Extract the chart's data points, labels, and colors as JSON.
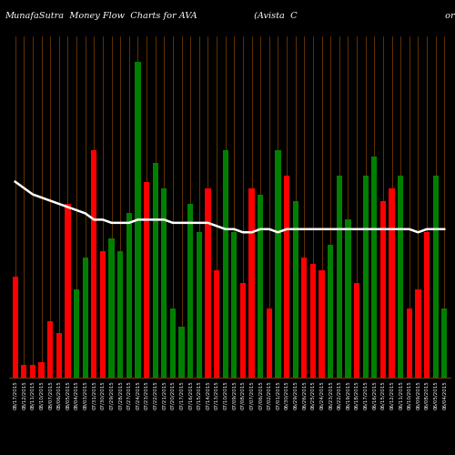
{
  "title": "MunafaSutra  Money Flow  Charts for AVA                    (Avista  C                                                    orporatio",
  "background_color": "#000000",
  "grid_color": "#8B4500",
  "bar_colors_pattern": [
    "red",
    "red",
    "red",
    "red",
    "red",
    "red",
    "red",
    "green",
    "green",
    "red",
    "red",
    "green",
    "green",
    "green",
    "green",
    "red",
    "green",
    "green",
    "green",
    "green",
    "green",
    "green",
    "red",
    "red",
    "green",
    "green",
    "red",
    "red",
    "green",
    "red",
    "green",
    "red",
    "green",
    "red",
    "red",
    "red",
    "green",
    "green",
    "green",
    "red",
    "green",
    "green",
    "red",
    "red",
    "green",
    "red",
    "red",
    "red",
    "green",
    "green"
  ],
  "bar_heights": [
    0.32,
    0.04,
    0.04,
    0.05,
    0.18,
    0.14,
    0.55,
    0.28,
    0.38,
    0.72,
    0.4,
    0.44,
    0.4,
    0.52,
    1.0,
    0.62,
    0.68,
    0.6,
    0.22,
    0.16,
    0.55,
    0.46,
    0.6,
    0.34,
    0.72,
    0.46,
    0.3,
    0.6,
    0.58,
    0.22,
    0.72,
    0.64,
    0.56,
    0.38,
    0.36,
    0.34,
    0.42,
    0.64,
    0.5,
    0.3,
    0.64,
    0.7,
    0.56,
    0.6,
    0.64,
    0.22,
    0.28,
    0.46,
    0.64,
    0.22
  ],
  "price_line_y": [
    0.62,
    0.6,
    0.58,
    0.57,
    0.56,
    0.55,
    0.54,
    0.53,
    0.52,
    0.5,
    0.5,
    0.49,
    0.49,
    0.49,
    0.5,
    0.5,
    0.5,
    0.5,
    0.49,
    0.49,
    0.49,
    0.49,
    0.49,
    0.48,
    0.47,
    0.47,
    0.46,
    0.46,
    0.47,
    0.47,
    0.46,
    0.47,
    0.47,
    0.47,
    0.47,
    0.47,
    0.47,
    0.47,
    0.47,
    0.47,
    0.47,
    0.47,
    0.47,
    0.47,
    0.47,
    0.47,
    0.46,
    0.47,
    0.47,
    0.47
  ],
  "xlabel_fontsize": 4,
  "title_fontsize": 7,
  "ylim": [
    0,
    1.08
  ],
  "xlabels": [
    "08/17/2015",
    "08/12/2015",
    "08/11/2015",
    "08/10/2015",
    "08/07/2015",
    "08/06/2015",
    "08/05/2015",
    "08/04/2015",
    "08/03/2015",
    "07/31/2015",
    "07/30/2015",
    "07/29/2015",
    "07/28/2015",
    "07/27/2015",
    "07/24/2015",
    "07/23/2015",
    "07/22/2015",
    "07/21/2015",
    "07/20/2015",
    "07/17/2015",
    "07/16/2015",
    "07/15/2015",
    "07/14/2015",
    "07/13/2015",
    "07/10/2015",
    "07/09/2015",
    "07/08/2015",
    "07/07/2015",
    "07/06/2015",
    "07/02/2015",
    "07/01/2015",
    "06/30/2015",
    "06/29/2015",
    "06/26/2015",
    "06/25/2015",
    "06/24/2015",
    "06/23/2015",
    "06/22/2015",
    "06/19/2015",
    "06/18/2015",
    "06/17/2015",
    "06/16/2015",
    "06/15/2015",
    "06/12/2015",
    "06/11/2015",
    "06/10/2015",
    "06/09/2015",
    "06/08/2015",
    "06/05/2015",
    "06/04/2015"
  ]
}
